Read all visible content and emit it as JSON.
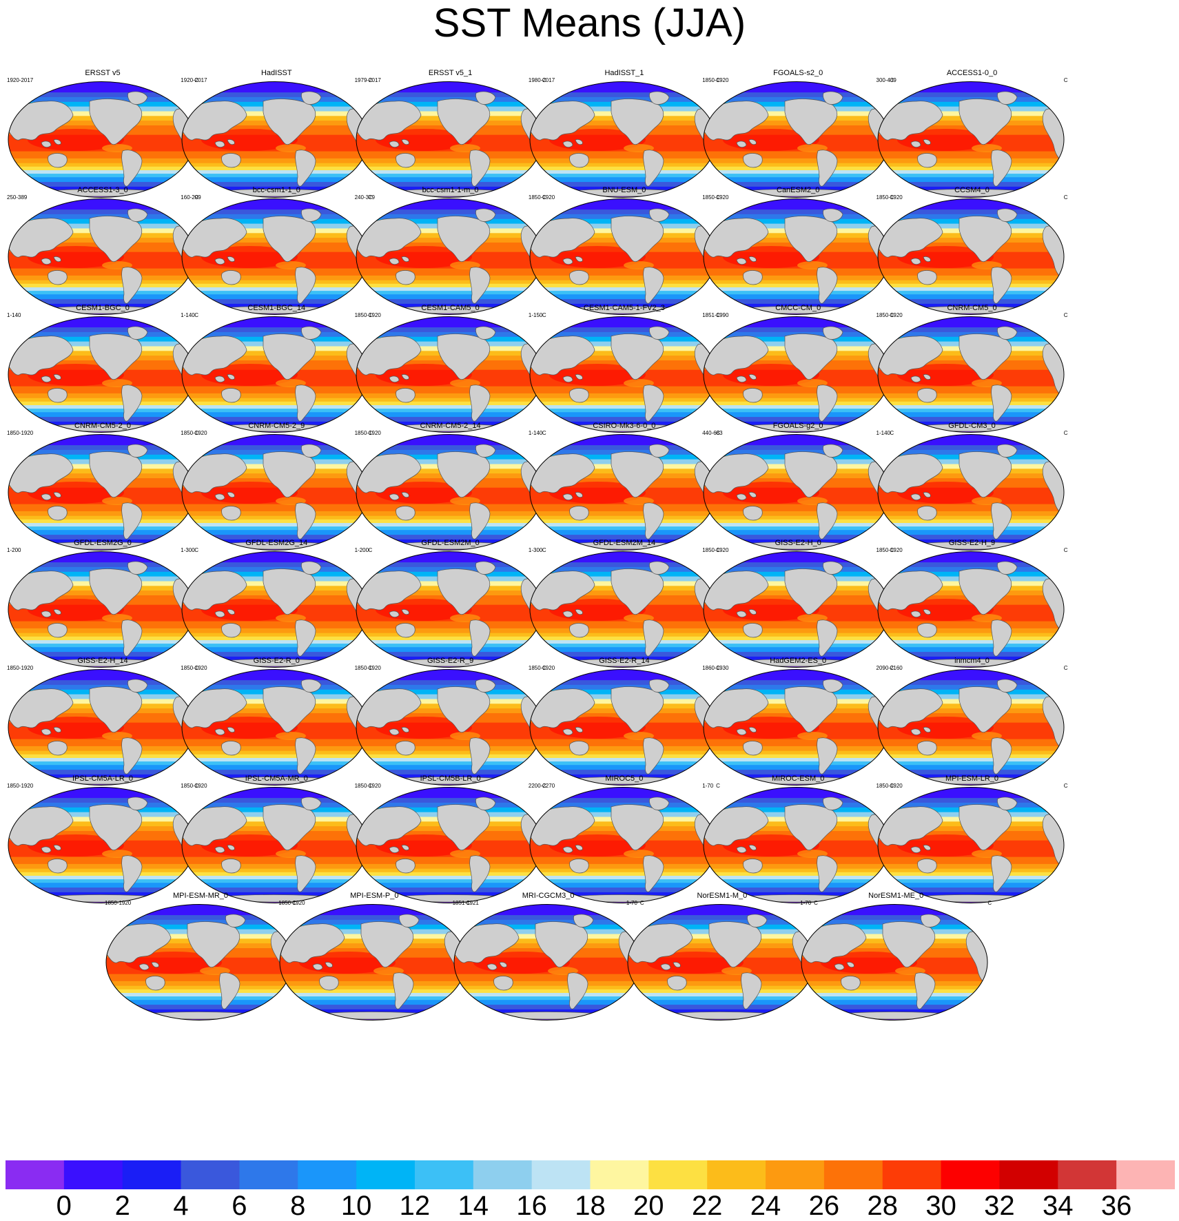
{
  "title": "SST Means (JJA)",
  "units": "C",
  "icons": {
    "panel_map": "world-map-icon"
  },
  "panels": [
    {
      "name": "ERSST v5",
      "period": "1920-2017"
    },
    {
      "name": "HadISST",
      "period": "1920-2017"
    },
    {
      "name": "ERSST v5_1",
      "period": "1979-2017"
    },
    {
      "name": "HadISST_1",
      "period": "1980-2017"
    },
    {
      "name": "FGOALS-s2_0",
      "period": "1850-1920"
    },
    {
      "name": "ACCESS1-0_0",
      "period": "300-439"
    },
    {
      "name": "ACCESS1-3_0",
      "period": "250-389"
    },
    {
      "name": "bcc-csm1-1_0",
      "period": "160-299"
    },
    {
      "name": "bcc-csm1-1-m_0",
      "period": "240-379"
    },
    {
      "name": "BNU-ESM_0",
      "period": "1850-1920"
    },
    {
      "name": "CanESM2_0",
      "period": "1850-1920"
    },
    {
      "name": "CCSM4_0",
      "period": "1850-1920"
    },
    {
      "name": "CESM1-BGC_0",
      "period": "1-140"
    },
    {
      "name": "CESM1-BGC_14",
      "period": "1-140"
    },
    {
      "name": "CESM1-CAM5_0",
      "period": "1850-1920"
    },
    {
      "name": "CESM1-CAM5-1-FV2_3",
      "period": "1-150"
    },
    {
      "name": "CMCC-CM_0",
      "period": "1851-1990"
    },
    {
      "name": "CNRM-CM5_0",
      "period": "1850-1920"
    },
    {
      "name": "CNRM-CM5-2_0",
      "period": "1850-1920"
    },
    {
      "name": "CNRM-CM5-2_9",
      "period": "1850-1920"
    },
    {
      "name": "CNRM-CM5-2_14",
      "period": "1850-1920"
    },
    {
      "name": "CSIRO-Mk3-6-0_0",
      "period": "1-140"
    },
    {
      "name": "FGOALS-g2_0",
      "period": "440-683"
    },
    {
      "name": "GFDL-CM3_0",
      "period": "1-140"
    },
    {
      "name": "GFDL-ESM2G_0",
      "period": "1-200"
    },
    {
      "name": "GFDL-ESM2G_14",
      "period": "1-300"
    },
    {
      "name": "GFDL-ESM2M_0",
      "period": "1-200"
    },
    {
      "name": "GFDL-ESM2M_14",
      "period": "1-300"
    },
    {
      "name": "GISS-E2-H_0",
      "period": "1850-1920"
    },
    {
      "name": "GISS-E2-H_9",
      "period": "1850-1920"
    },
    {
      "name": "GISS-E2-H_14",
      "period": "1850-1920"
    },
    {
      "name": "GISS-E2-R_0",
      "period": "1850-1920"
    },
    {
      "name": "GISS-E2-R_9",
      "period": "1850-1920"
    },
    {
      "name": "GISS-E2-R_14",
      "period": "1850-1920"
    },
    {
      "name": "HadGEM2-ES_0",
      "period": "1860-1930"
    },
    {
      "name": "inmcm4_0",
      "period": "2090-2160"
    },
    {
      "name": "IPSL-CM5A-LR_0",
      "period": "1850-1920"
    },
    {
      "name": "IPSL-CM5A-MR_0",
      "period": "1850-1920"
    },
    {
      "name": "IPSL-CM5B-LR_0",
      "period": "1850-1920"
    },
    {
      "name": "MIROC5_0",
      "period": "2200-2270"
    },
    {
      "name": "MIROC-ESM_0",
      "period": "1-70"
    },
    {
      "name": "MPI-ESM-LR_0",
      "period": "1850-1920"
    },
    {
      "name": "MPI-ESM-MR_0",
      "period": "1850-1920"
    },
    {
      "name": "MPI-ESM-P_0",
      "period": "1850-1920"
    },
    {
      "name": "MRI-CGCM3_0",
      "period": "1851-1921"
    },
    {
      "name": "NorESM1-M_0",
      "period": "1-70"
    },
    {
      "name": "NorESM1-ME_0",
      "period": "1-70"
    }
  ],
  "colorbar": {
    "labels": [
      "0",
      "2",
      "4",
      "6",
      "8",
      "10",
      "12",
      "14",
      "16",
      "18",
      "20",
      "22",
      "24",
      "26",
      "28",
      "30",
      "32",
      "34",
      "36"
    ],
    "colors": [
      "#8a2cf2",
      "#3a10fe",
      "#1a1ef6",
      "#3a58dc",
      "#2e78ea",
      "#1a96fa",
      "#00b4f6",
      "#3cc0f6",
      "#8ecfee",
      "#bde3f4",
      "#fef6a0",
      "#fde042",
      "#fcbc1a",
      "#fd9a10",
      "#fd7208",
      "#fd3c06",
      "#fd0000",
      "#d20000",
      "#d23636",
      "#fdb4b4"
    ]
  }
}
